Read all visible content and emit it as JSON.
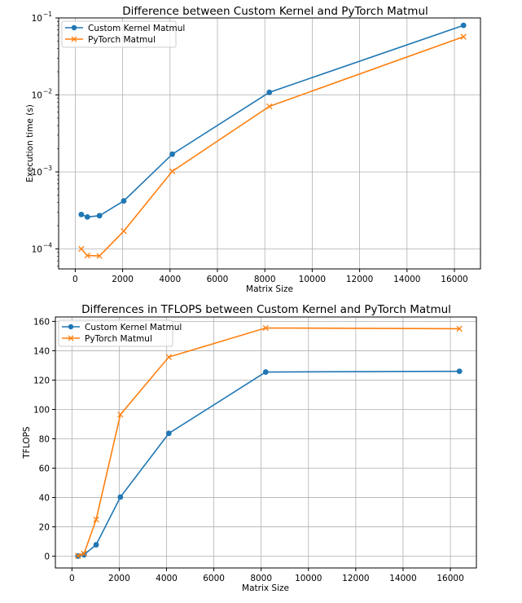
{
  "chart_data": [
    {
      "type": "line",
      "title": "Difference between Custom Kernel and PyTorch Matmul",
      "xlabel": "Matrix Size",
      "ylabel": "Execution time (s)",
      "yscale": "log",
      "xlim": [
        -700,
        17100
      ],
      "ylim": [
        5.5e-05,
        0.1
      ],
      "xticks": [
        0,
        2000,
        4000,
        6000,
        8000,
        10000,
        12000,
        14000,
        16000
      ],
      "xtick_labels": [
        "0",
        "2000",
        "4000",
        "6000",
        "8000",
        "10000",
        "12000",
        "14000",
        "16000"
      ],
      "yticks": [
        {
          "base": "10",
          "exp": "−1",
          "value": 0.1
        },
        {
          "base": "10",
          "exp": "−2",
          "value": 0.01
        },
        {
          "base": "10",
          "exp": "−3",
          "value": 0.001
        },
        {
          "base": "10",
          "exp": "−4",
          "value": 0.0001
        }
      ],
      "grid": true,
      "legend_position": "top-left",
      "x": [
        256,
        512,
        1024,
        2048,
        4096,
        8192,
        16384
      ],
      "series": [
        {
          "name": "Custom Kernel Matmul",
          "color": "#1f77b4",
          "marker": "circle",
          "values": [
            0.00028,
            0.00026,
            0.00027,
            0.00042,
            0.0017,
            0.0108,
            0.08
          ]
        },
        {
          "name": "PyTorch Matmul",
          "color": "#ff7f0e",
          "marker": "x",
          "values": [
            0.0001,
            8.2e-05,
            8.1e-05,
            0.00017,
            0.00102,
            0.0071,
            0.057
          ]
        }
      ]
    },
    {
      "type": "line",
      "title": "Differences in TFLOPS between Custom Kernel and PyTorch Matmul",
      "xlabel": "Matrix Size",
      "ylabel": "TFLOPS",
      "yscale": "linear",
      "xlim": [
        -700,
        17100
      ],
      "ylim": [
        -8,
        163
      ],
      "xticks": [
        0,
        2000,
        4000,
        6000,
        8000,
        10000,
        12000,
        14000,
        16000
      ],
      "xtick_labels": [
        "0",
        "2000",
        "4000",
        "6000",
        "8000",
        "10000",
        "12000",
        "14000",
        "16000"
      ],
      "yticks": [
        0,
        20,
        40,
        60,
        80,
        100,
        120,
        140,
        160
      ],
      "ytick_labels": [
        "0",
        "20",
        "40",
        "60",
        "80",
        "100",
        "120",
        "140",
        "160"
      ],
      "grid": true,
      "legend_position": "top-left",
      "x": [
        256,
        512,
        1024,
        2048,
        4096,
        8192,
        16384
      ],
      "series": [
        {
          "name": "Custom Kernel Matmul",
          "color": "#1f77b4",
          "marker": "circle",
          "values": [
            0.1,
            1.0,
            7.8,
            40.3,
            83.7,
            125.5,
            126.0
          ]
        },
        {
          "name": "PyTorch Matmul",
          "color": "#ff7f0e",
          "marker": "x",
          "values": [
            0.3,
            1.8,
            25.0,
            96.5,
            135.7,
            155.5,
            155.0
          ]
        }
      ]
    }
  ]
}
